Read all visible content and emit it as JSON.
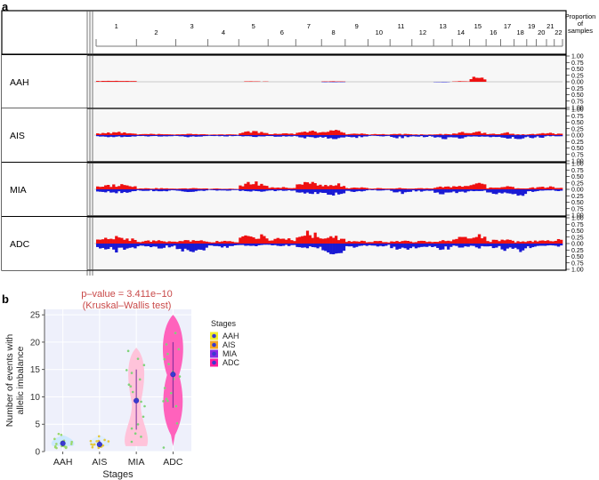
{
  "panel_a": {
    "letter": "a",
    "proportion_label": [
      "Proportion",
      "of",
      "samples"
    ],
    "chromosomes": [
      "1",
      "2",
      "3",
      "4",
      "5",
      "6",
      "7",
      "8",
      "9",
      "10",
      "11",
      "12",
      "13",
      "14",
      "15",
      "16",
      "17",
      "18",
      "19",
      "20",
      "21",
      "22"
    ],
    "y_ticks_top": [
      "1.00",
      "0.75",
      "0.50",
      "0.25",
      "0.00"
    ],
    "y_ticks_bottom": [
      "0.25",
      "0.50",
      "0.75",
      "1.00"
    ],
    "rows": [
      "AAH",
      "AIS",
      "MIA",
      "ADC"
    ],
    "gain_color": "#ee1111",
    "loss_color": "#1a1ad4"
  },
  "panel_b": {
    "letter": "b",
    "pvalue_line1": "p–value = 3.411e−10",
    "pvalue_line2": "(Kruskal–Wallis test)",
    "legend_title": "Stages",
    "ylabel_line1": "Number of events with",
    "ylabel_line2": "allelic imbalance",
    "xlabel": "Stages"
  },
  "chart_data": [
    {
      "type": "area",
      "title": "",
      "x_categories": [
        "1",
        "2",
        "3",
        "4",
        "5",
        "6",
        "7",
        "8",
        "9",
        "10",
        "11",
        "12",
        "13",
        "14",
        "15",
        "16",
        "17",
        "18",
        "19",
        "20",
        "21",
        "22"
      ],
      "ylabel": "Proportion of samples",
      "ylim": [
        -1,
        1
      ],
      "series": [
        {
          "name": "AAH",
          "gain_peak": [
            0.05,
            0,
            0,
            0,
            0.02,
            0,
            0,
            0.02,
            0,
            0,
            0,
            0,
            0,
            0.03,
            0.2,
            0,
            0,
            0,
            0,
            0,
            0,
            0
          ],
          "loss_peak": [
            0,
            0,
            0,
            0,
            0,
            0,
            0,
            0.02,
            0,
            0,
            0,
            0,
            0.02,
            0,
            0,
            0,
            0,
            0,
            0,
            0,
            0,
            0
          ]
        },
        {
          "name": "AIS",
          "gain_peak": [
            0.12,
            0.05,
            0.05,
            0.03,
            0.16,
            0.08,
            0.18,
            0.2,
            0.06,
            0.04,
            0.05,
            0.03,
            0.05,
            0.12,
            0.15,
            0.06,
            0.1,
            0.03,
            0.05,
            0.08,
            0.1,
            0.08
          ],
          "loss_peak": [
            0.1,
            0.06,
            0.08,
            0.05,
            0.08,
            0.07,
            0.12,
            0.15,
            0.1,
            0.05,
            0.12,
            0.08,
            0.15,
            0.12,
            0.1,
            0.1,
            0.15,
            0.2,
            0.12,
            0.1,
            0.05,
            0.08
          ]
        },
        {
          "name": "MIA",
          "gain_peak": [
            0.2,
            0.05,
            0.05,
            0.03,
            0.3,
            0.1,
            0.28,
            0.22,
            0.08,
            0.05,
            0.05,
            0.05,
            0.12,
            0.2,
            0.3,
            0.1,
            0.15,
            0.05,
            0.08,
            0.1,
            0.12,
            0.1
          ],
          "loss_peak": [
            0.15,
            0.08,
            0.1,
            0.05,
            0.1,
            0.08,
            0.2,
            0.25,
            0.1,
            0.05,
            0.15,
            0.1,
            0.2,
            0.15,
            0.1,
            0.2,
            0.25,
            0.28,
            0.15,
            0.1,
            0.05,
            0.1
          ]
        },
        {
          "name": "ADC",
          "gain_peak": [
            0.28,
            0.12,
            0.15,
            0.1,
            0.4,
            0.2,
            0.45,
            0.3,
            0.12,
            0.1,
            0.12,
            0.1,
            0.15,
            0.3,
            0.38,
            0.15,
            0.2,
            0.1,
            0.15,
            0.15,
            0.15,
            0.18
          ],
          "loss_peak": [
            0.3,
            0.2,
            0.35,
            0.15,
            0.1,
            0.1,
            0.25,
            0.45,
            0.15,
            0.12,
            0.3,
            0.2,
            0.25,
            0.2,
            0.2,
            0.25,
            0.35,
            0.3,
            0.2,
            0.15,
            0.1,
            0.15
          ]
        }
      ]
    },
    {
      "type": "violin",
      "title": "",
      "categories": [
        "AAH",
        "AIS",
        "MIA",
        "ADC"
      ],
      "xlabel": "Stages",
      "ylabel": "Number of events with allelic imbalance",
      "ylim": [
        0,
        26
      ],
      "y_ticks": [
        0,
        5,
        10,
        15,
        20,
        25
      ],
      "legend": {
        "title": "Stages",
        "position": "right",
        "entries": [
          "AAH",
          "AIS",
          "MIA",
          "ADC"
        ]
      },
      "colors": {
        "AAH": "#f2ee2a",
        "AIS": "#f5a623",
        "MIA": "#8a2be2",
        "ADC": "#ff1e9e",
        "AAH_violin": "#c9e7ff",
        "AIS_violin": "#dcecff",
        "MIA_violin": "#ffc0d8",
        "ADC_violin": "#ff5ab8"
      },
      "means": {
        "AAH": 1.5,
        "AIS": 1.3,
        "MIA": 9.3,
        "ADC": 14.1
      },
      "ranges": {
        "AAH": [
          1,
          3
        ],
        "AIS": [
          1,
          3
        ],
        "MIA": [
          1,
          19
        ],
        "ADC": [
          1,
          25
        ]
      },
      "inner_ranges": {
        "AAH": [
          1,
          2
        ],
        "AIS": [
          1,
          2
        ],
        "MIA": [
          4,
          15
        ],
        "ADC": [
          8,
          20
        ]
      },
      "points": {
        "AAH": [
          1,
          1,
          1,
          2,
          1,
          3,
          1,
          2,
          1,
          2,
          1,
          1,
          1,
          2,
          3,
          1,
          1,
          2
        ],
        "AIS": [
          1,
          1,
          2,
          1,
          1,
          3,
          1,
          2,
          1,
          1,
          2,
          1,
          2,
          1,
          1,
          2
        ],
        "MIA": [
          2,
          3,
          4,
          6,
          8,
          9,
          10,
          11,
          12,
          13,
          14,
          15,
          17,
          18,
          3,
          5,
          12,
          16
        ],
        "ADC": [
          1,
          5,
          8,
          9,
          10,
          12,
          13,
          14,
          15,
          16,
          17,
          18,
          19,
          20,
          22,
          11,
          14,
          9
        ]
      }
    }
  ]
}
